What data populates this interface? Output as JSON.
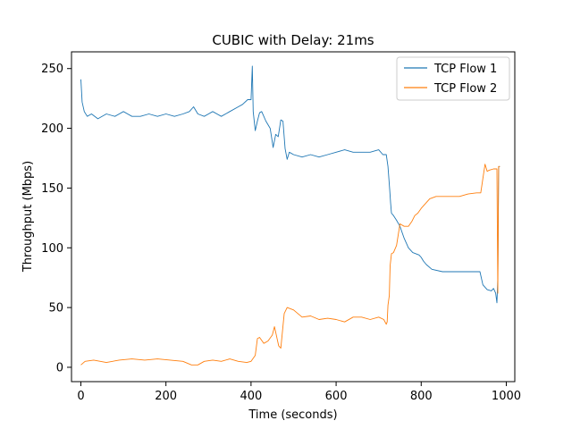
{
  "chart_data": {
    "type": "line",
    "title": "CUBIC with Delay: 21ms",
    "xlabel": "Time (seconds)",
    "ylabel": "Throughput (Mbps)",
    "xlim": [
      -22,
      1020
    ],
    "ylim": [
      -12,
      264
    ],
    "xticks": [
      0,
      200,
      400,
      600,
      800,
      1000
    ],
    "yticks": [
      0,
      50,
      100,
      150,
      200,
      250
    ],
    "legend_position": "top-right",
    "series": [
      {
        "name": "TCP Flow 1",
        "color": "#1f77b4",
        "points": [
          [
            0,
            241
          ],
          [
            3,
            222
          ],
          [
            8,
            214
          ],
          [
            15,
            210
          ],
          [
            25,
            212
          ],
          [
            40,
            208
          ],
          [
            60,
            212
          ],
          [
            80,
            210
          ],
          [
            100,
            214
          ],
          [
            120,
            210
          ],
          [
            140,
            210
          ],
          [
            160,
            212
          ],
          [
            180,
            210
          ],
          [
            200,
            212
          ],
          [
            220,
            210
          ],
          [
            240,
            212
          ],
          [
            255,
            214
          ],
          [
            265,
            218
          ],
          [
            275,
            212
          ],
          [
            290,
            210
          ],
          [
            310,
            214
          ],
          [
            330,
            210
          ],
          [
            350,
            214
          ],
          [
            370,
            218
          ],
          [
            380,
            220
          ],
          [
            392,
            224
          ],
          [
            400,
            224
          ],
          [
            403,
            252
          ],
          [
            405,
            214
          ],
          [
            410,
            198
          ],
          [
            415,
            206
          ],
          [
            420,
            213
          ],
          [
            425,
            214
          ],
          [
            435,
            206
          ],
          [
            445,
            200
          ],
          [
            452,
            184
          ],
          [
            458,
            195
          ],
          [
            464,
            193
          ],
          [
            470,
            207
          ],
          [
            475,
            206
          ],
          [
            480,
            183
          ],
          [
            485,
            174
          ],
          [
            490,
            180
          ],
          [
            500,
            178
          ],
          [
            520,
            176
          ],
          [
            540,
            178
          ],
          [
            560,
            176
          ],
          [
            580,
            178
          ],
          [
            600,
            180
          ],
          [
            620,
            182
          ],
          [
            640,
            180
          ],
          [
            660,
            180
          ],
          [
            680,
            180
          ],
          [
            700,
            182
          ],
          [
            710,
            178
          ],
          [
            718,
            178
          ],
          [
            722,
            168
          ],
          [
            726,
            148
          ],
          [
            728,
            138
          ],
          [
            730,
            129
          ],
          [
            735,
            127
          ],
          [
            742,
            123
          ],
          [
            750,
            118
          ],
          [
            760,
            108
          ],
          [
            770,
            100
          ],
          [
            780,
            96
          ],
          [
            795,
            94
          ],
          [
            800,
            92
          ],
          [
            805,
            89
          ],
          [
            812,
            86
          ],
          [
            825,
            82
          ],
          [
            850,
            80
          ],
          [
            880,
            80
          ],
          [
            910,
            80
          ],
          [
            938,
            80
          ],
          [
            945,
            69
          ],
          [
            955,
            65
          ],
          [
            965,
            64
          ],
          [
            970,
            66
          ],
          [
            975,
            62
          ],
          [
            978,
            54
          ],
          [
            980,
            74
          ],
          [
            982,
            168
          ],
          [
            985,
            168
          ]
        ]
      },
      {
        "name": "TCP Flow 2",
        "color": "#ff7f0e",
        "points": [
          [
            0,
            2
          ],
          [
            10,
            5
          ],
          [
            30,
            6
          ],
          [
            60,
            4
          ],
          [
            90,
            6
          ],
          [
            120,
            7
          ],
          [
            150,
            6
          ],
          [
            180,
            7
          ],
          [
            210,
            6
          ],
          [
            240,
            5
          ],
          [
            260,
            2
          ],
          [
            275,
            2
          ],
          [
            290,
            5
          ],
          [
            310,
            6
          ],
          [
            330,
            5
          ],
          [
            350,
            7
          ],
          [
            370,
            5
          ],
          [
            390,
            4
          ],
          [
            400,
            5
          ],
          [
            410,
            10
          ],
          [
            415,
            24
          ],
          [
            420,
            25
          ],
          [
            430,
            20
          ],
          [
            440,
            22
          ],
          [
            450,
            27
          ],
          [
            455,
            34
          ],
          [
            465,
            18
          ],
          [
            470,
            16
          ],
          [
            478,
            45
          ],
          [
            485,
            50
          ],
          [
            500,
            48
          ],
          [
            520,
            42
          ],
          [
            540,
            43
          ],
          [
            560,
            40
          ],
          [
            580,
            41
          ],
          [
            600,
            40
          ],
          [
            620,
            38
          ],
          [
            640,
            42
          ],
          [
            660,
            42
          ],
          [
            680,
            40
          ],
          [
            700,
            42
          ],
          [
            712,
            40
          ],
          [
            718,
            36
          ],
          [
            720,
            38
          ],
          [
            722,
            52
          ],
          [
            725,
            60
          ],
          [
            727,
            85
          ],
          [
            730,
            95
          ],
          [
            735,
            96
          ],
          [
            742,
            102
          ],
          [
            750,
            120
          ],
          [
            760,
            118
          ],
          [
            770,
            118
          ],
          [
            778,
            122
          ],
          [
            785,
            127
          ],
          [
            792,
            129
          ],
          [
            800,
            133
          ],
          [
            810,
            137
          ],
          [
            820,
            141
          ],
          [
            835,
            143
          ],
          [
            850,
            143
          ],
          [
            870,
            143
          ],
          [
            890,
            143
          ],
          [
            910,
            145
          ],
          [
            930,
            146
          ],
          [
            940,
            146
          ],
          [
            945,
            158
          ],
          [
            950,
            170
          ],
          [
            955,
            164
          ],
          [
            960,
            165
          ],
          [
            970,
            166
          ],
          [
            978,
            166
          ],
          [
            980,
            62
          ],
          [
            982,
            168
          ],
          [
            985,
            168
          ]
        ]
      }
    ]
  }
}
